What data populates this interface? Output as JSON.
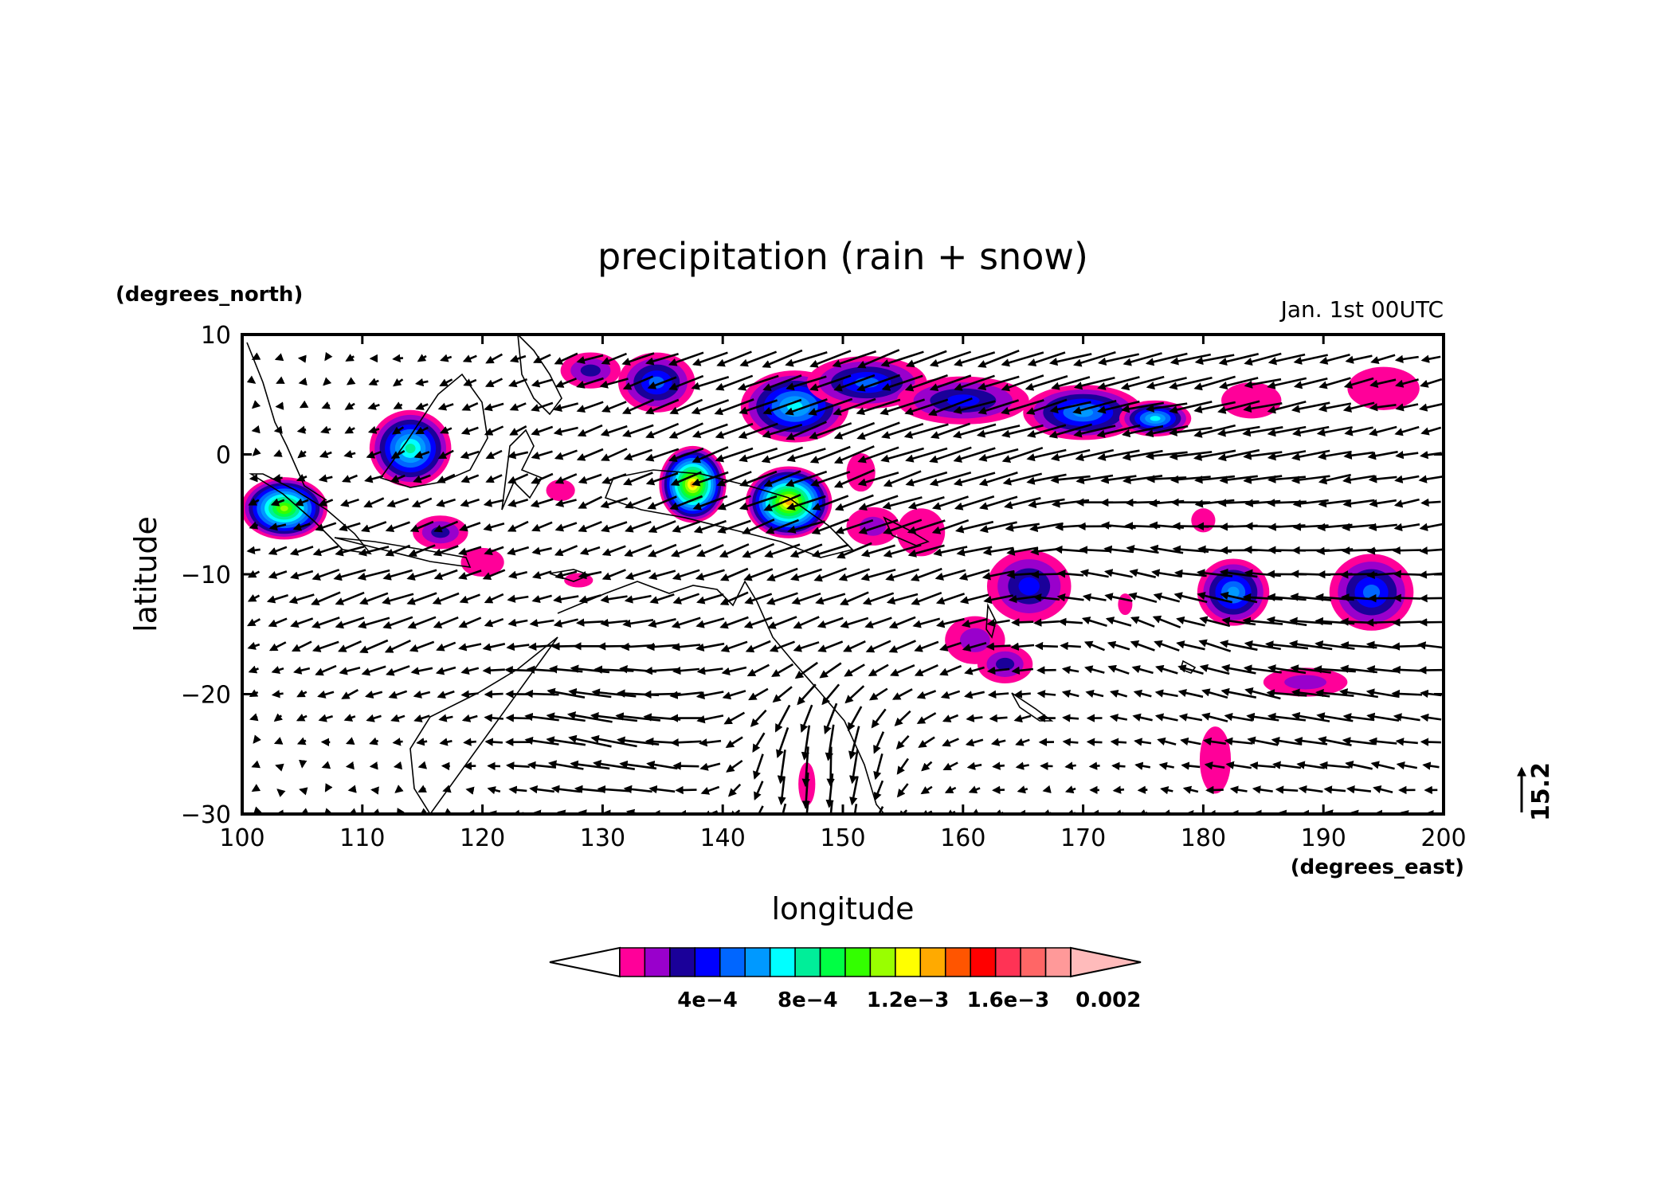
{
  "title": "precipitation (rain + snow)",
  "subtitle": "Jan. 1st 00UTC",
  "ylabel": "latitude",
  "yunits": "(degrees_north)",
  "xlabel": "longitude",
  "xunits": "(degrees_east)",
  "reference_vector": {
    "value": "15.2"
  },
  "chart_data": {
    "type": "heatmap",
    "title": "precipitation (rain + snow)",
    "subtitle": "Jan. 1st 00UTC",
    "xlabel": "longitude",
    "ylabel": "latitude",
    "x_units": "degrees_east",
    "y_units": "degrees_north",
    "xlim": [
      100,
      200
    ],
    "ylim": [
      -30,
      10
    ],
    "x_ticks": [
      {
        "value": 100,
        "label": "100"
      },
      {
        "value": 110,
        "label": "110"
      },
      {
        "value": 120,
        "label": "120"
      },
      {
        "value": 130,
        "label": "130"
      },
      {
        "value": 140,
        "label": "140"
      },
      {
        "value": 150,
        "label": "150"
      },
      {
        "value": 160,
        "label": "160"
      },
      {
        "value": 170,
        "label": "170"
      },
      {
        "value": 180,
        "label": "180"
      },
      {
        "value": 190,
        "label": "190"
      },
      {
        "value": 200,
        "label": "200"
      }
    ],
    "y_ticks": [
      {
        "value": 10,
        "label": "10"
      },
      {
        "value": 0,
        "label": "0"
      },
      {
        "value": -10,
        "label": "−10"
      },
      {
        "value": -20,
        "label": "−20"
      },
      {
        "value": -30,
        "label": "−30"
      }
    ],
    "colorbar": {
      "colors": [
        "#ff0099",
        "#9900cc",
        "#1a0099",
        "#0000ff",
        "#0066ff",
        "#0099ff",
        "#00ffff",
        "#00ee99",
        "#00ff44",
        "#33ff00",
        "#99ff00",
        "#ffff00",
        "#ffaa00",
        "#ff5500",
        "#ff0000",
        "#ff3355",
        "#ff6666",
        "#ff9999"
      ],
      "low_color": "#ffffff",
      "high_color": "#ffbbbb",
      "labels": [
        {
          "value": 0.0004,
          "label": "4e−4"
        },
        {
          "value": 0.0008,
          "label": "8e−4"
        },
        {
          "value": 0.0012,
          "label": "1.2e−3"
        },
        {
          "value": 0.0016,
          "label": "1.6e−3"
        },
        {
          "value": 0.002,
          "label": "0.002"
        }
      ],
      "min": 0.0001,
      "step": 0.0001
    },
    "precip_cells": [
      {
        "lon": 103.5,
        "lat": -4.5,
        "rx": 3.6,
        "ry": 2.6,
        "peak": 0.0011
      },
      {
        "lon": 114.0,
        "lat": 0.5,
        "rx": 3.4,
        "ry": 3.2,
        "peak": 0.0008
      },
      {
        "lon": 116.5,
        "lat": -6.5,
        "rx": 2.3,
        "ry": 1.4,
        "peak": 0.0003
      },
      {
        "lon": 120.0,
        "lat": -9.0,
        "rx": 1.8,
        "ry": 1.2,
        "peak": 0.0001
      },
      {
        "lon": 129.0,
        "lat": 7.0,
        "rx": 2.5,
        "ry": 1.5,
        "peak": 0.0003
      },
      {
        "lon": 134.5,
        "lat": 6.0,
        "rx": 3.2,
        "ry": 2.5,
        "peak": 0.0005
      },
      {
        "lon": 137.5,
        "lat": -2.5,
        "rx": 2.8,
        "ry": 3.2,
        "peak": 0.0013
      },
      {
        "lon": 145.5,
        "lat": -4.0,
        "rx": 3.6,
        "ry": 3.0,
        "peak": 0.0013
      },
      {
        "lon": 146.0,
        "lat": 4.0,
        "rx": 4.5,
        "ry": 3.0,
        "peak": 0.0007
      },
      {
        "lon": 152.0,
        "lat": 6.0,
        "rx": 5.0,
        "ry": 2.2,
        "peak": 0.0005
      },
      {
        "lon": 160.0,
        "lat": 4.5,
        "rx": 5.5,
        "ry": 2.0,
        "peak": 0.0004
      },
      {
        "lon": 170.0,
        "lat": 3.5,
        "rx": 5.0,
        "ry": 2.3,
        "peak": 0.0006
      },
      {
        "lon": 176.0,
        "lat": 3.0,
        "rx": 3.0,
        "ry": 1.5,
        "peak": 0.0007
      },
      {
        "lon": 184.0,
        "lat": 4.5,
        "rx": 2.5,
        "ry": 1.5,
        "peak": 0.0001
      },
      {
        "lon": 195.0,
        "lat": 5.5,
        "rx": 3.0,
        "ry": 1.8,
        "peak": 0.0001
      },
      {
        "lon": 151.5,
        "lat": -1.5,
        "rx": 1.2,
        "ry": 1.6,
        "peak": 0.0001
      },
      {
        "lon": 152.5,
        "lat": -6.0,
        "rx": 2.2,
        "ry": 1.6,
        "peak": 0.0002
      },
      {
        "lon": 156.5,
        "lat": -6.5,
        "rx": 2.0,
        "ry": 2.0,
        "peak": 0.0001
      },
      {
        "lon": 165.5,
        "lat": -11.0,
        "rx": 3.5,
        "ry": 3.0,
        "peak": 0.0004
      },
      {
        "lon": 161.0,
        "lat": -15.5,
        "rx": 2.5,
        "ry": 2.0,
        "peak": 0.0002
      },
      {
        "lon": 163.5,
        "lat": -17.5,
        "rx": 2.3,
        "ry": 1.6,
        "peak": 0.0003
      },
      {
        "lon": 182.5,
        "lat": -11.5,
        "rx": 3.0,
        "ry": 2.8,
        "peak": 0.0006
      },
      {
        "lon": 194.0,
        "lat": -11.5,
        "rx": 3.5,
        "ry": 3.2,
        "peak": 0.0005
      },
      {
        "lon": 188.5,
        "lat": -19.0,
        "rx": 3.5,
        "ry": 1.2,
        "peak": 0.0002
      },
      {
        "lon": 181.0,
        "lat": -25.5,
        "rx": 1.3,
        "ry": 2.8,
        "peak": 0.0001
      },
      {
        "lon": 126.5,
        "lat": -3.0,
        "rx": 1.2,
        "ry": 0.9,
        "peak": 0.0001
      },
      {
        "lon": 128.0,
        "lat": -10.5,
        "rx": 1.2,
        "ry": 0.6,
        "peak": 0.0001
      },
      {
        "lon": 180.0,
        "lat": -5.5,
        "rx": 1.0,
        "ry": 1.0,
        "peak": 0.0001
      },
      {
        "lon": 173.5,
        "lat": -12.5,
        "rx": 0.6,
        "ry": 0.9,
        "peak": 0.0001
      },
      {
        "lon": 147.0,
        "lat": -27.5,
        "rx": 0.7,
        "ry": 1.8,
        "peak": 0.0001
      }
    ],
    "wind_vectors": {
      "grid_lon": [
        100,
        200,
        2.0
      ],
      "grid_lat": [
        -30,
        9,
        2.0
      ],
      "reference_magnitude": 15.2,
      "regimes": [
        {
          "lon": 150,
          "lat": 5,
          "u": -14,
          "v": -5,
          "radius": 30
        },
        {
          "lon": 185,
          "lat": 2,
          "u": -10,
          "v": -2,
          "radius": 20
        },
        {
          "lon": 130,
          "lat": -23,
          "u": -12,
          "v": 4,
          "radius": 8
        },
        {
          "lon": 148,
          "lat": -26,
          "u": 4,
          "v": -12,
          "radius": 6
        },
        {
          "lon": 110,
          "lat": -12,
          "u": -9,
          "v": -3,
          "radius": 10
        },
        {
          "lon": 190,
          "lat": -20,
          "u": -10,
          "v": 2,
          "radius": 12
        },
        {
          "lon": 175,
          "lat": -12,
          "u": 2,
          "v": 5,
          "radius": 12
        }
      ]
    }
  }
}
